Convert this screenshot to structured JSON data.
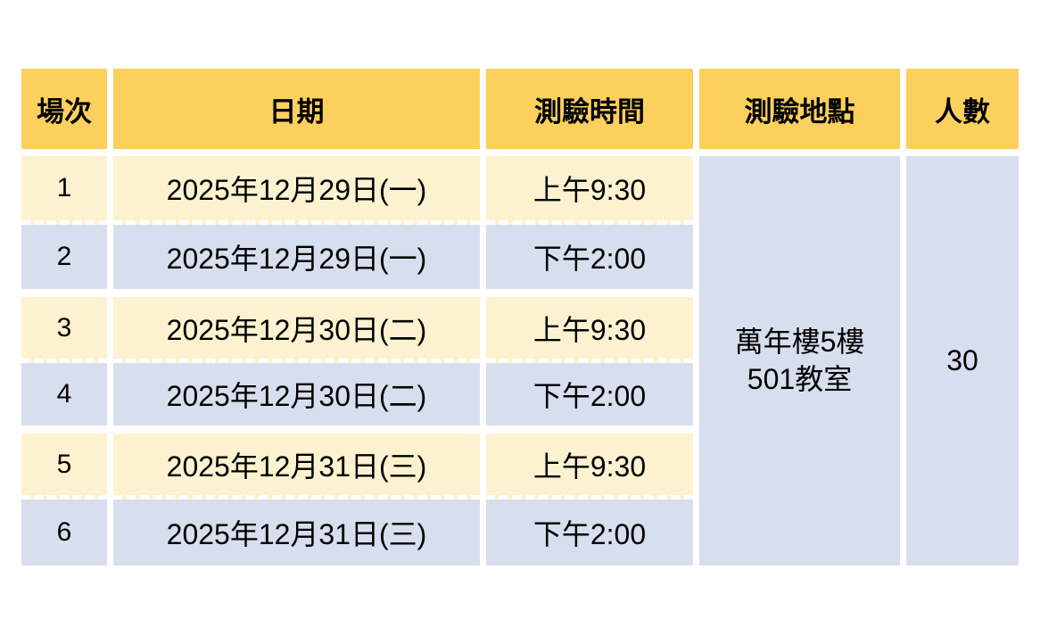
{
  "table": {
    "headers": {
      "session": "場次",
      "date": "日期",
      "time": "測驗時間",
      "location": "測驗地點",
      "count": "人數"
    },
    "rows": [
      {
        "session": "1",
        "date": "2025年12月29日(一)",
        "time": "上午9:30"
      },
      {
        "session": "2",
        "date": "2025年12月29日(一)",
        "time": "下午2:00"
      },
      {
        "session": "3",
        "date": "2025年12月30日(二)",
        "time": "上午9:30"
      },
      {
        "session": "4",
        "date": "2025年12月30日(二)",
        "time": "下午2:00"
      },
      {
        "session": "5",
        "date": "2025年12月31日(三)",
        "time": "上午9:30"
      },
      {
        "session": "6",
        "date": "2025年12月31日(三)",
        "time": "下午2:00"
      }
    ],
    "location": {
      "line1": "萬年樓5樓",
      "line2": "501教室"
    },
    "capacity": "30"
  },
  "colors": {
    "header_bg": "#fbd05c",
    "odd_row_bg": "#fdf2d0",
    "even_row_bg": "#d7deed",
    "separator": "#ffffff",
    "text": "#000000"
  }
}
